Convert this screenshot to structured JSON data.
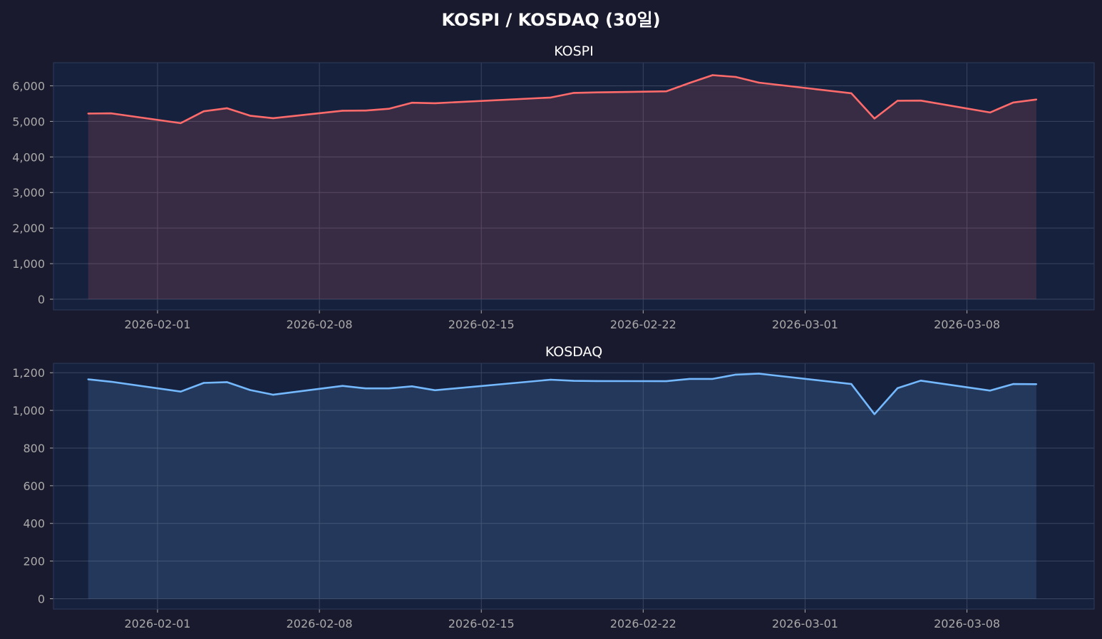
{
  "suptitle": "KOSPI / KOSDAQ (30일)",
  "colors": {
    "figure_bg": "#1a1a2e",
    "axes_bg": "#16213e",
    "grid": "#3a4560",
    "axis_text": "#aaaaaa",
    "title_text": "#ffffff"
  },
  "chart_data": [
    {
      "type": "area",
      "title": "KOSPI",
      "xlabel": "",
      "ylabel": "",
      "color": "#ff6b6b",
      "fill_color": "#ff6b6b",
      "grid": true,
      "x_range": [
        "2026-01-27T12:00",
        "2026-03-13T12:00"
      ],
      "ylim": [
        -300,
        6650
      ],
      "yticks": [
        0,
        1000,
        2000,
        3000,
        4000,
        5000,
        6000
      ],
      "ytick_labels": [
        "0",
        "1,000",
        "2,000",
        "3,000",
        "4,000",
        "5,000",
        "6,000"
      ],
      "xticks": [
        "2026-02-01",
        "2026-02-08",
        "2026-02-15",
        "2026-02-22",
        "2026-03-01",
        "2026-03-08"
      ],
      "xtick_labels": [
        "2026-02-01",
        "2026-02-08",
        "2026-02-15",
        "2026-02-22",
        "2026-03-01",
        "2026-03-08"
      ],
      "series": [
        {
          "x": [
            "2026-01-29",
            "2026-01-30",
            "2026-02-02",
            "2026-02-03",
            "2026-02-04",
            "2026-02-05",
            "2026-02-06",
            "2026-02-09",
            "2026-02-10",
            "2026-02-11",
            "2026-02-12",
            "2026-02-13",
            "2026-02-18",
            "2026-02-19",
            "2026-02-20",
            "2026-02-23",
            "2026-02-24",
            "2026-02-25",
            "2026-02-26",
            "2026-02-27",
            "2026-03-03",
            "2026-03-04",
            "2026-03-05",
            "2026-03-06",
            "2026-03-09",
            "2026-03-10",
            "2026-03-11"
          ],
          "values": [
            5220,
            5225,
            4950,
            5285,
            5370,
            5160,
            5090,
            5300,
            5305,
            5355,
            5525,
            5510,
            5670,
            5800,
            5815,
            5845,
            6080,
            6300,
            6250,
            6090,
            5790,
            5080,
            5580,
            5585,
            5250,
            5530,
            5615
          ]
        }
      ]
    },
    {
      "type": "area",
      "title": "KOSDAQ",
      "xlabel": "",
      "ylabel": "",
      "color": "#74b9ff",
      "fill_color": "#74b9ff",
      "grid": true,
      "x_range": [
        "2026-01-27T12:00",
        "2026-03-13T12:00"
      ],
      "ylim": [
        -55,
        1250
      ],
      "yticks": [
        0,
        200,
        400,
        600,
        800,
        1000,
        1200
      ],
      "ytick_labels": [
        "0",
        "200",
        "400",
        "600",
        "800",
        "1,000",
        "1,200"
      ],
      "xticks": [
        "2026-02-01",
        "2026-02-08",
        "2026-02-15",
        "2026-02-22",
        "2026-03-01",
        "2026-03-08"
      ],
      "xtick_labels": [
        "2026-02-01",
        "2026-02-08",
        "2026-02-15",
        "2026-02-22",
        "2026-03-01",
        "2026-03-08"
      ],
      "series": [
        {
          "x": [
            "2026-01-29",
            "2026-01-30",
            "2026-02-02",
            "2026-02-03",
            "2026-02-04",
            "2026-02-05",
            "2026-02-06",
            "2026-02-09",
            "2026-02-10",
            "2026-02-11",
            "2026-02-12",
            "2026-02-13",
            "2026-02-18",
            "2026-02-19",
            "2026-02-20",
            "2026-02-23",
            "2026-02-24",
            "2026-02-25",
            "2026-02-26",
            "2026-02-27",
            "2026-03-03",
            "2026-03-04",
            "2026-03-05",
            "2026-03-06",
            "2026-03-09",
            "2026-03-10",
            "2026-03-11"
          ],
          "values": [
            1165,
            1152,
            1100,
            1146,
            1150,
            1108,
            1083,
            1130,
            1117,
            1117,
            1128,
            1107,
            1163,
            1157,
            1156,
            1155,
            1167,
            1167,
            1190,
            1195,
            1140,
            980,
            1118,
            1158,
            1105,
            1140,
            1139
          ]
        }
      ]
    }
  ]
}
